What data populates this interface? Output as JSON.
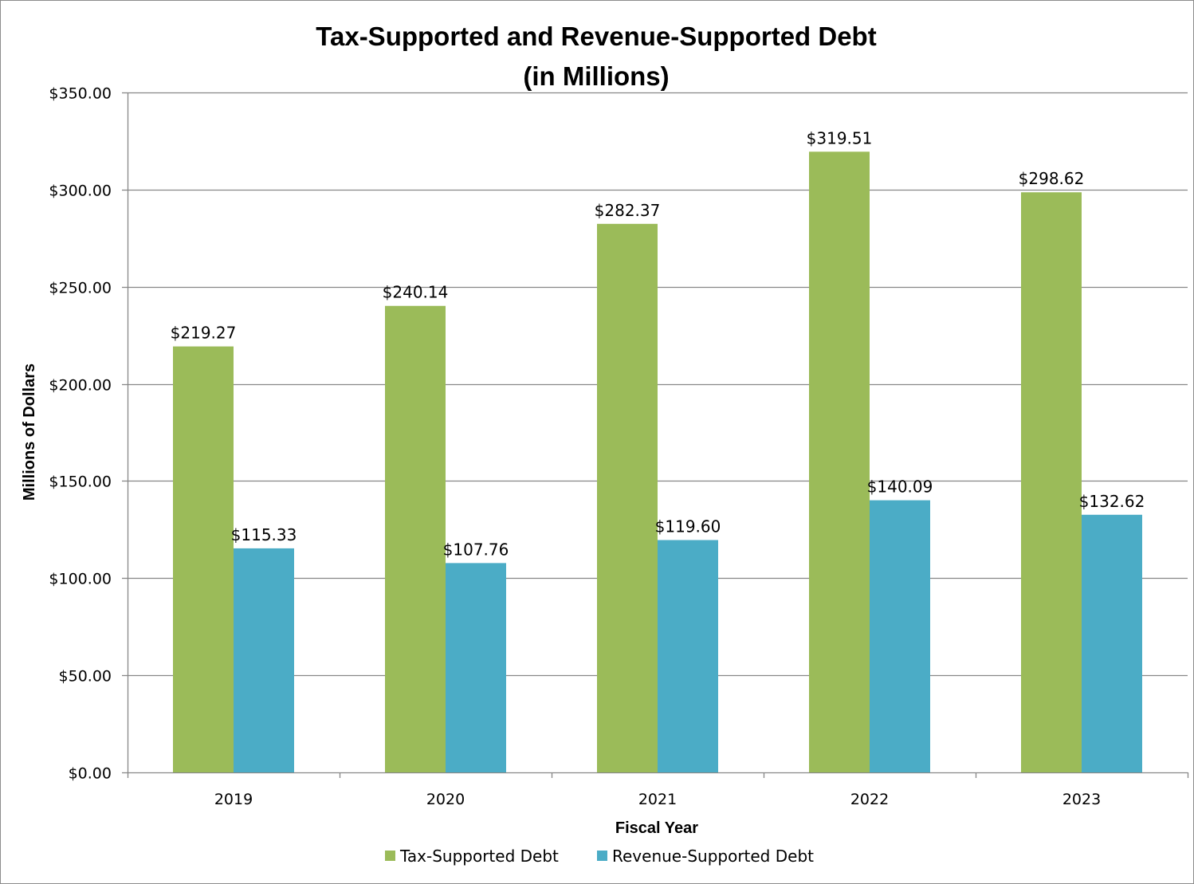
{
  "chart_data": {
    "type": "bar",
    "title_line1": "Tax-Supported and Revenue-Supported Debt",
    "title_line2": "(in Millions)",
    "xlabel": "Fiscal Year",
    "ylabel": "Millions of Dollars",
    "categories": [
      "2019",
      "2020",
      "2021",
      "2022",
      "2023"
    ],
    "series": [
      {
        "name": "Tax-Supported Debt",
        "color": "#9bbb59",
        "values": [
          219.27,
          240.14,
          282.37,
          319.51,
          298.62
        ],
        "labels": [
          "$219.27",
          "$240.14",
          "$282.37",
          "$319.51",
          "$298.62"
        ]
      },
      {
        "name": "Revenue-Supported Debt",
        "color": "#4bacc6",
        "values": [
          115.33,
          107.76,
          119.6,
          140.09,
          132.62
        ],
        "labels": [
          "$115.33",
          "$107.76",
          "$119.60",
          "$140.09",
          "$132.62"
        ]
      }
    ],
    "ylim": [
      0,
      350
    ],
    "yticks": [
      0,
      50,
      100,
      150,
      200,
      250,
      300,
      350
    ],
    "ytick_labels": [
      "$0.00",
      "$50.00",
      "$100.00",
      "$150.00",
      "$200.00",
      "$250.00",
      "$300.00",
      "$350.00"
    ],
    "grid": true,
    "legend_position": "bottom"
  }
}
